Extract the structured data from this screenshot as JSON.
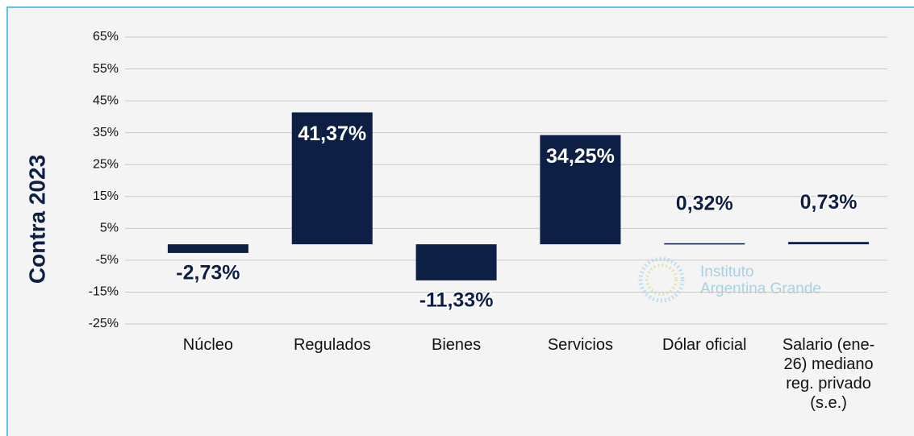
{
  "chart_data": {
    "type": "bar",
    "y_label": "Contra 2023",
    "watermark": [
      "Instituto",
      "Argentina Grande"
    ],
    "categories": [
      "Núcleo",
      "Regulados",
      "Bienes",
      "Servicios",
      "Dólar oficial",
      "Salario (ene-26) mediano reg. privado (s.e.)"
    ],
    "values": [
      -2.73,
      41.37,
      -11.33,
      34.25,
      0.32,
      0.73
    ],
    "value_labels": [
      "-2,73%",
      "41,37%",
      "-11,33%",
      "34,25%",
      "0,32%",
      "0,73%"
    ],
    "color": "#0d1f45",
    "ylim": [
      -25,
      65
    ],
    "yticks": [
      {
        "value": -25,
        "label": "-25%"
      },
      {
        "value": -15,
        "label": "-15%"
      },
      {
        "value": -5,
        "label": "-5%"
      },
      {
        "value": 5,
        "label": "5%"
      },
      {
        "value": 15,
        "label": "15%"
      },
      {
        "value": 25,
        "label": "25%"
      },
      {
        "value": 35,
        "label": "35%"
      },
      {
        "value": 45,
        "label": "45%"
      },
      {
        "value": 55,
        "label": "55%"
      },
      {
        "value": 65,
        "label": "65%"
      }
    ],
    "grid": true
  }
}
